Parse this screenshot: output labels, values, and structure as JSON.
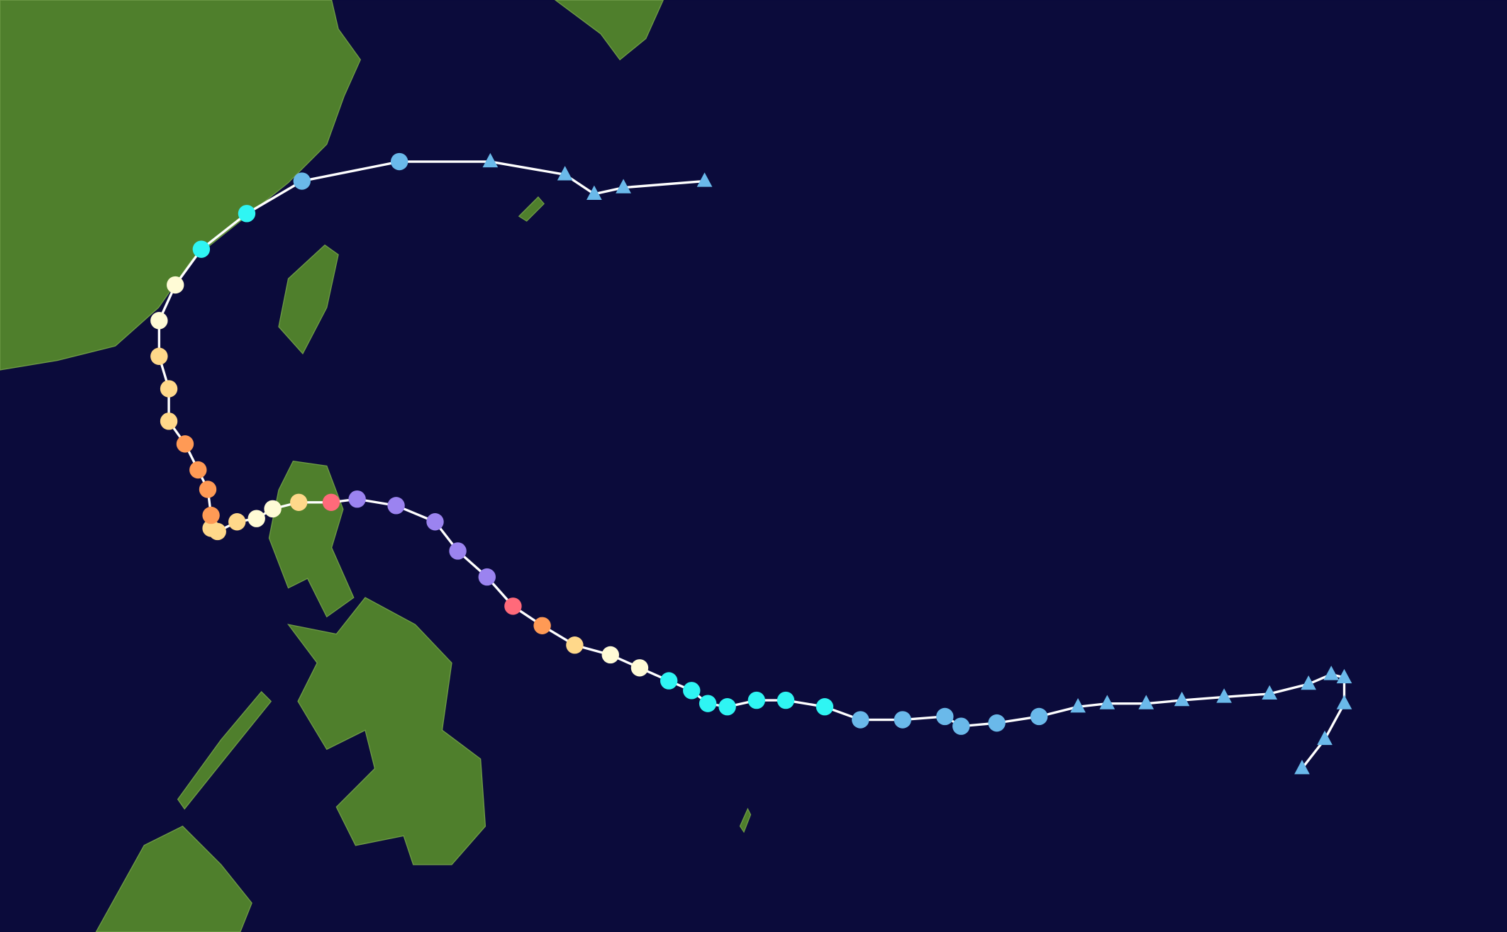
{
  "track": {
    "line_color": "#ffffff",
    "points": [
      {
        "lon": 151.6,
        "lat": 9.2,
        "marker": "triangle",
        "color": "#6ab9ea"
      },
      {
        "lon": 152.3,
        "lat": 10.1,
        "marker": "triangle",
        "color": "#6ab9ea"
      },
      {
        "lon": 152.9,
        "lat": 11.2,
        "marker": "triangle",
        "color": "#6ab9ea"
      },
      {
        "lon": 152.9,
        "lat": 12.0,
        "marker": "triangle",
        "color": "#6ab9ea"
      },
      {
        "lon": 152.5,
        "lat": 12.1,
        "marker": "triangle",
        "color": "#6ab9ea"
      },
      {
        "lon": 151.8,
        "lat": 11.8,
        "marker": "triangle",
        "color": "#6ab9ea"
      },
      {
        "lon": 150.6,
        "lat": 11.5,
        "marker": "triangle",
        "color": "#6ab9ea"
      },
      {
        "lon": 149.2,
        "lat": 11.4,
        "marker": "triangle",
        "color": "#6ab9ea"
      },
      {
        "lon": 147.9,
        "lat": 11.3,
        "marker": "triangle",
        "color": "#6ab9ea"
      },
      {
        "lon": 146.8,
        "lat": 11.2,
        "marker": "triangle",
        "color": "#6ab9ea"
      },
      {
        "lon": 145.6,
        "lat": 11.2,
        "marker": "triangle",
        "color": "#6ab9ea"
      },
      {
        "lon": 144.7,
        "lat": 11.1,
        "marker": "triangle",
        "color": "#6ab9ea"
      },
      {
        "lon": 143.5,
        "lat": 10.8,
        "marker": "circle",
        "color": "#6ab9ea"
      },
      {
        "lon": 142.2,
        "lat": 10.6,
        "marker": "circle",
        "color": "#6ab9ea"
      },
      {
        "lon": 141.1,
        "lat": 10.5,
        "marker": "circle",
        "color": "#6ab9ea"
      },
      {
        "lon": 140.6,
        "lat": 10.8,
        "marker": "circle",
        "color": "#6ab9ea"
      },
      {
        "lon": 139.3,
        "lat": 10.7,
        "marker": "circle",
        "color": "#6ab9ea"
      },
      {
        "lon": 138.0,
        "lat": 10.7,
        "marker": "circle",
        "color": "#6ab9ea"
      },
      {
        "lon": 136.9,
        "lat": 11.1,
        "marker": "circle",
        "color": "#2ff5f3"
      },
      {
        "lon": 135.7,
        "lat": 11.3,
        "marker": "circle",
        "color": "#2ff5f3"
      },
      {
        "lon": 134.8,
        "lat": 11.3,
        "marker": "circle",
        "color": "#2ff5f3"
      },
      {
        "lon": 133.9,
        "lat": 11.1,
        "marker": "circle",
        "color": "#2ff5f3"
      },
      {
        "lon": 133.3,
        "lat": 11.2,
        "marker": "circle",
        "color": "#2ff5f3"
      },
      {
        "lon": 132.8,
        "lat": 11.6,
        "marker": "circle",
        "color": "#2ff5f3"
      },
      {
        "lon": 132.1,
        "lat": 11.9,
        "marker": "circle",
        "color": "#2ff5f3"
      },
      {
        "lon": 131.2,
        "lat": 12.3,
        "marker": "circle",
        "color": "#fffbd6"
      },
      {
        "lon": 130.3,
        "lat": 12.7,
        "marker": "circle",
        "color": "#fffbd6"
      },
      {
        "lon": 129.2,
        "lat": 13.0,
        "marker": "circle",
        "color": "#ffd88a"
      },
      {
        "lon": 128.2,
        "lat": 13.6,
        "marker": "circle",
        "color": "#ff9a55"
      },
      {
        "lon": 127.3,
        "lat": 14.2,
        "marker": "circle",
        "color": "#ff6a7a"
      },
      {
        "lon": 126.5,
        "lat": 15.1,
        "marker": "circle",
        "color": "#9b83f0"
      },
      {
        "lon": 125.6,
        "lat": 15.9,
        "marker": "circle",
        "color": "#9b83f0"
      },
      {
        "lon": 124.9,
        "lat": 16.8,
        "marker": "circle",
        "color": "#9b83f0"
      },
      {
        "lon": 123.7,
        "lat": 17.3,
        "marker": "circle",
        "color": "#9b83f0"
      },
      {
        "lon": 122.5,
        "lat": 17.5,
        "marker": "circle",
        "color": "#9b83f0"
      },
      {
        "lon": 121.7,
        "lat": 17.4,
        "marker": "circle",
        "color": "#ff6a7a"
      },
      {
        "lon": 120.7,
        "lat": 17.4,
        "marker": "circle",
        "color": "#ffd88a"
      },
      {
        "lon": 119.9,
        "lat": 17.2,
        "marker": "circle",
        "color": "#fffbd6"
      },
      {
        "lon": 119.4,
        "lat": 16.9,
        "marker": "circle",
        "color": "#fffbd6"
      },
      {
        "lon": 118.8,
        "lat": 16.8,
        "marker": "circle",
        "color": "#ffd88a"
      },
      {
        "lon": 118.2,
        "lat": 16.5,
        "marker": "circle",
        "color": "#ffd88a"
      },
      {
        "lon": 118.0,
        "lat": 16.6,
        "marker": "circle",
        "color": "#ffd88a"
      },
      {
        "lon": 118.0,
        "lat": 17.0,
        "marker": "circle",
        "color": "#ff9a55"
      },
      {
        "lon": 117.9,
        "lat": 17.8,
        "marker": "circle",
        "color": "#ff9a55"
      },
      {
        "lon": 117.6,
        "lat": 18.4,
        "marker": "circle",
        "color": "#ff9a55"
      },
      {
        "lon": 117.2,
        "lat": 19.2,
        "marker": "circle",
        "color": "#ff9a55"
      },
      {
        "lon": 116.7,
        "lat": 19.9,
        "marker": "circle",
        "color": "#ffd88a"
      },
      {
        "lon": 116.7,
        "lat": 20.9,
        "marker": "circle",
        "color": "#ffd88a"
      },
      {
        "lon": 116.4,
        "lat": 21.9,
        "marker": "circle",
        "color": "#ffd88a"
      },
      {
        "lon": 116.4,
        "lat": 23.0,
        "marker": "circle",
        "color": "#fffbd6"
      },
      {
        "lon": 116.9,
        "lat": 24.1,
        "marker": "circle",
        "color": "#fffbd6"
      },
      {
        "lon": 117.7,
        "lat": 25.2,
        "marker": "circle",
        "color": "#2ff5f3"
      },
      {
        "lon": 119.1,
        "lat": 26.3,
        "marker": "circle",
        "color": "#2ff5f3"
      },
      {
        "lon": 120.8,
        "lat": 27.3,
        "marker": "circle",
        "color": "#6ab9ea"
      },
      {
        "lon": 123.8,
        "lat": 27.9,
        "marker": "circle",
        "color": "#6ab9ea"
      },
      {
        "lon": 126.6,
        "lat": 27.9,
        "marker": "triangle",
        "color": "#6ab9ea"
      },
      {
        "lon": 128.9,
        "lat": 27.5,
        "marker": "triangle",
        "color": "#6ab9ea"
      },
      {
        "lon": 129.8,
        "lat": 26.9,
        "marker": "triangle",
        "color": "#6ab9ea"
      },
      {
        "lon": 130.7,
        "lat": 27.1,
        "marker": "triangle",
        "color": "#6ab9ea"
      },
      {
        "lon": 133.2,
        "lat": 27.3,
        "marker": "triangle",
        "color": "#6ab9ea"
      }
    ]
  }
}
